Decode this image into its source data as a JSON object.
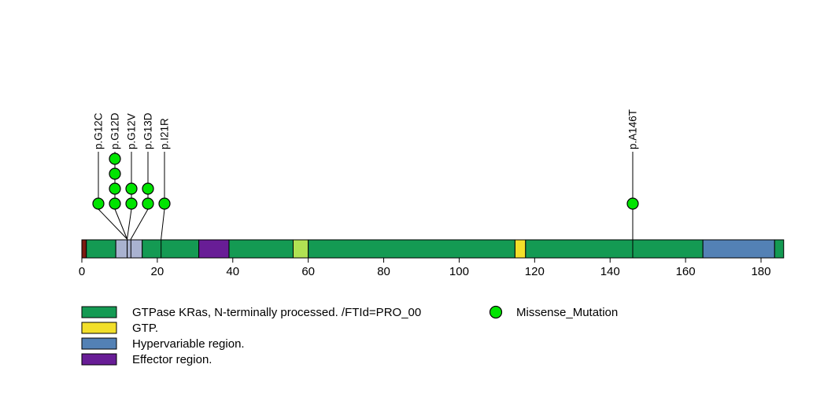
{
  "figure": {
    "background": "#ffffff",
    "description": "Lollipop mutation plot over KRas protein domain bar"
  },
  "chart_data": {
    "type": "lollipop",
    "title": "",
    "xlabel": "",
    "ylabel": "",
    "grid": false,
    "protein_length": 186,
    "xlim": [
      0,
      186
    ],
    "x_ticks": [
      0,
      20,
      40,
      60,
      80,
      100,
      120,
      140,
      160,
      180
    ],
    "x_tick_labels": [
      "0",
      "20",
      "40",
      "60",
      "80",
      "100",
      "120",
      "140",
      "160",
      "180"
    ],
    "mutation_type": "Missense_Mutation",
    "mutation_color": "#00e400",
    "mutations": [
      {
        "label": "p.G12C",
        "residue": 12,
        "count": 1
      },
      {
        "label": "p.G12D",
        "residue": 12,
        "count": 4
      },
      {
        "label": "p.G12V",
        "residue": 12,
        "count": 2
      },
      {
        "label": "p.G13D",
        "residue": 13,
        "count": 2
      },
      {
        "label": "p.I21R",
        "residue": 21,
        "count": 1
      },
      {
        "label": "p.A146T",
        "residue": 146,
        "count": 1
      }
    ],
    "domains": [
      {
        "start": 0,
        "end": 1.2,
        "color": "#7d1b12"
      },
      {
        "start": 1.2,
        "end": 9,
        "color": "#149a53"
      },
      {
        "start": 9,
        "end": 16,
        "color": "#a9b2d0"
      },
      {
        "start": 16,
        "end": 31,
        "color": "#149a53"
      },
      {
        "start": 31,
        "end": 39,
        "color": "#681d96"
      },
      {
        "start": 39,
        "end": 56,
        "color": "#149a53"
      },
      {
        "start": 56,
        "end": 60,
        "color": "#b0e253"
      },
      {
        "start": 60,
        "end": 114.8,
        "color": "#149a53"
      },
      {
        "start": 114.8,
        "end": 117.6,
        "color": "#f2df2a"
      },
      {
        "start": 117.6,
        "end": 164.6,
        "color": "#149a53"
      },
      {
        "start": 164.6,
        "end": 183.6,
        "color": "#5381b5"
      },
      {
        "start": 183.6,
        "end": 186,
        "color": "#149a53"
      }
    ],
    "legend_items": [
      {
        "label": "GTPase KRas, N-terminally processed. /FTId=PRO_00",
        "color": "#149a53"
      },
      {
        "label": "GTP.",
        "color": "#f2df2a"
      },
      {
        "label": "Hypervariable region.",
        "color": "#5381b5"
      },
      {
        "label": "Effector region.",
        "color": "#681d96"
      }
    ],
    "point_legend": {
      "label": "Missense_Mutation",
      "color": "#00e400"
    }
  }
}
